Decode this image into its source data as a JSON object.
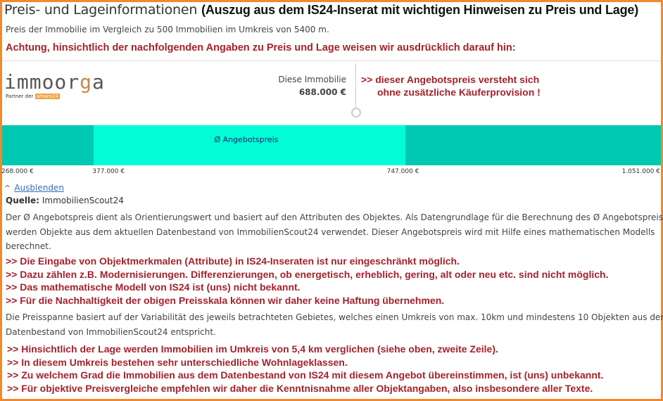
{
  "header": {
    "title": "Preis- und Lageinformationen",
    "title_note": "(Auszug aus dem IS24-Inserat mit wichtigen Hinweisen zu Preis und Lage)",
    "subtitle": "Preis der Immobilie im Vergleich zu 500 Immobilien im Umkreis von 5400 m.",
    "warning": "Achtung, hinsichtlich der nachfolgenden Angaben zu Preis und Lage weisen wir ausdrücklich darauf hin:"
  },
  "logo": {
    "text_a": "immoor",
    "text_g": "g",
    "text_b": "a",
    "partner": "Partner der",
    "partner_brand": "amaro24"
  },
  "price": {
    "this_label": "Diese Immobilie",
    "this_value": "688.000 €",
    "this_value_num": 688000,
    "note_line1": ">> dieser Angebotspreis versteht sich",
    "note_line2": "ohne zusätzliche Käuferprovision !",
    "avg_label": "Ø Angebotspreis",
    "range_min": 268000,
    "avg_low": 377000,
    "avg_high": 747000,
    "range_max": 1051000,
    "ticks": [
      "268.000 €",
      "377.000 €",
      "747.000 €",
      "1.051.000 €"
    ],
    "colors": {
      "outer": "#00c9b1",
      "inner": "#00fdd6"
    }
  },
  "toggle": {
    "label": "Ausblenden",
    "icon": "chevron-up-icon"
  },
  "source": {
    "label": "Quelle:",
    "value": "ImmobilienScout24"
  },
  "para1": [
    "Der Ø Angebotspreis dient als Orientierungswert und basiert auf den Attributen des Objektes. Als Datengrundlage für die Berechnung des Ø Angebotspreises",
    "werden Objekte aus dem aktuellen Datenbestand von ImmobilienScout24 verwendet. Dieser Angebotspreis wird mit Hilfe eines mathematischen Modells",
    "berechnet."
  ],
  "notes1": [
    ">> Die Eingabe von Objektmerkmalen (Attribute) in IS24-Inseraten ist nur eingeschränkt möglich.",
    ">> Dazu zählen z.B. Modernisierungen. Differenzierungen, ob energetisch, erheblich, gering, alt oder neu etc. sind nicht möglich.",
    ">> Das mathematische Modell von IS24 ist (uns) nicht bekannt.",
    ">> Für die Nachhaltigkeit der obigen Preisskala können wir daher keine Haftung übernehmen."
  ],
  "para2": [
    "Die Preisspanne basiert auf der Variabilität des jeweils betrachteten Gebietes, welches einen Umkreis von max. 10km und mindestens 10 Objekten aus dem",
    "Datenbestand von ImmobilienScout24 entspricht."
  ],
  "notes2": [
    ">> Hinsichtlich der Lage werden Immobilien im Umkreis von 5,4 km verglichen (siehe oben, zweite Zeile).",
    ">> In diesem Umkreis bestehen sehr unterschiedliche Wohnlageklassen.",
    ">> Zu welchem Grad die Immobilien aus dem Datenbestand von IS24 mit diesem Angebot übereinstimmen, ist (uns) unbekannt.",
    ">> Für objektive Preisvergleiche empfehlen wir daher die Kenntnisnahme aller Objektangaben, also insbesondere aller Texte."
  ]
}
